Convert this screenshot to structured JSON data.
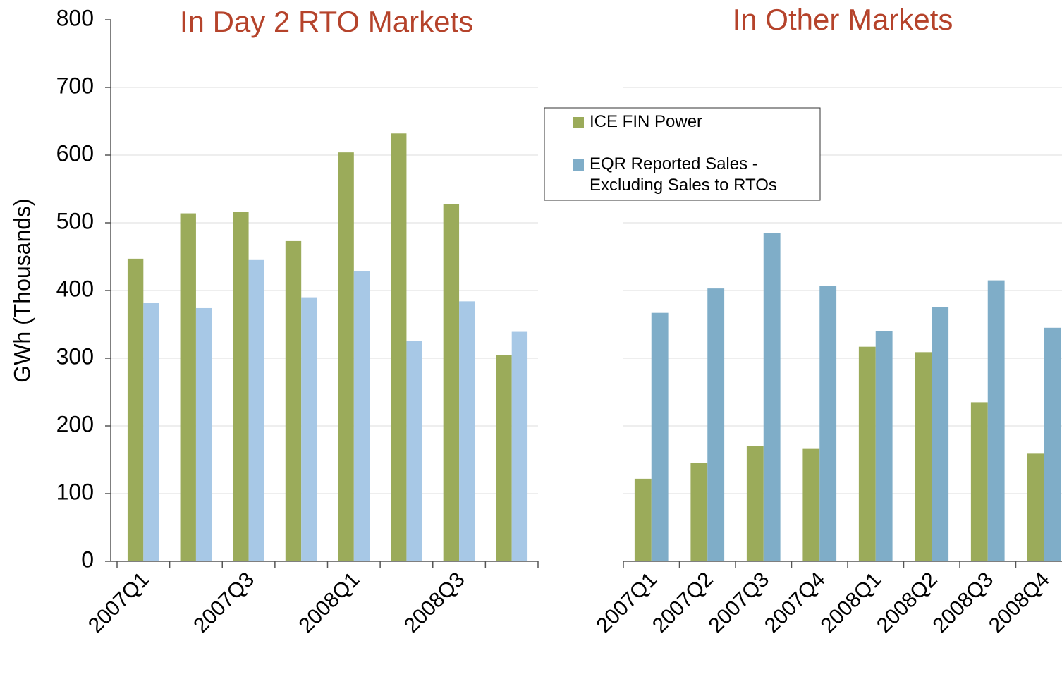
{
  "chart_data": [
    {
      "type": "bar",
      "title": "In Day 2 RTO Markets",
      "y_label": "GWh (Thousands)",
      "categories": [
        "2007Q1",
        null,
        "2007Q3",
        null,
        "2008Q1",
        null,
        "2008Q3",
        null
      ],
      "series": [
        {
          "color": "#9bab5a",
          "values": [
            447,
            514,
            516,
            473,
            604,
            632,
            528,
            305
          ]
        },
        {
          "color": "#a7c8e6",
          "values": [
            382,
            374,
            445,
            390,
            429,
            326,
            384,
            339
          ]
        }
      ],
      "ylim": [
        0,
        800
      ],
      "yticks": [
        0,
        100,
        200,
        300,
        400,
        500,
        600,
        700,
        800
      ],
      "grid": true,
      "ytick_labels": true
    },
    {
      "type": "bar",
      "title": "In Other Markets",
      "categories": [
        "2007Q1",
        "2007Q2",
        "2007Q3",
        "2007Q4",
        "2008Q1",
        "2008Q2",
        "2008Q3",
        "2008Q4"
      ],
      "series": [
        {
          "name": "ICE FIN Power",
          "color": "#9bab5a",
          "values": [
            122,
            145,
            170,
            166,
            317,
            309,
            235,
            159
          ]
        },
        {
          "name": "EQR Reported Sales - Excluding Sales to RTOs",
          "color": "#7fadc8",
          "values": [
            367,
            403,
            485,
            407,
            340,
            375,
            415,
            345
          ]
        }
      ],
      "ylim": [
        0,
        800
      ],
      "yticks": [
        0,
        100,
        200,
        300,
        400,
        500,
        600,
        700,
        800
      ],
      "grid": true,
      "ytick_labels": false,
      "legend": "top-left"
    }
  ]
}
